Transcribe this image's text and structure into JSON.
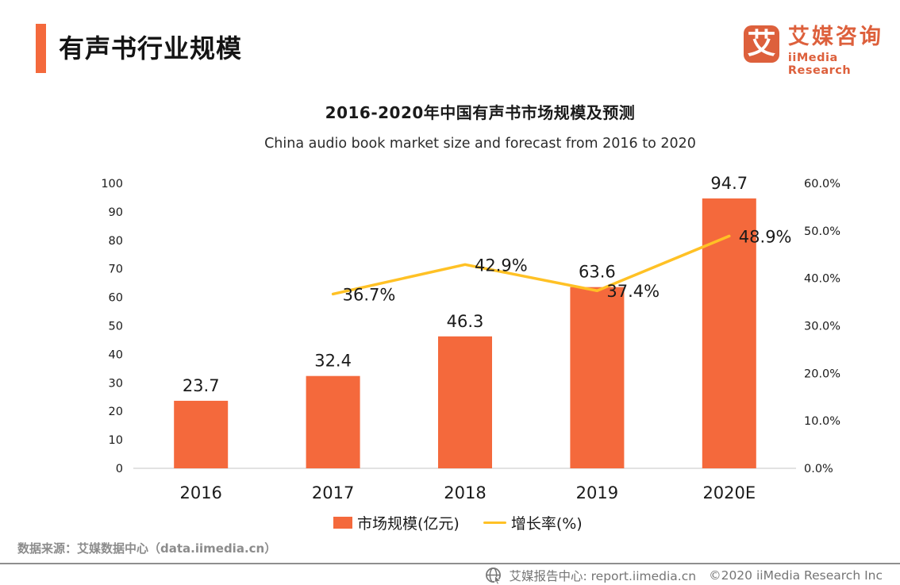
{
  "page": {
    "title": "有声书行业规模"
  },
  "logo": {
    "icon_char": "艾",
    "name_cn": "艾媒咨询",
    "name_en": "iiMedia Research",
    "color": "#DD603C"
  },
  "chart": {
    "title_cn": "2016-2020年中国有声书市场规模及预测",
    "title_en": "China audio book market size and forecast from 2016 to 2020",
    "legend": [
      {
        "label": "市场规模(亿元)",
        "swatch": "bar-square",
        "color": "#F4693C"
      },
      {
        "label": "增长率(%)",
        "swatch": "line",
        "color": "#FFC125"
      }
    ]
  },
  "chart_data": {
    "type": "bar",
    "subtype": "bar+line dual axis",
    "title": "2016-2020年中国有声书市场规模及预测",
    "subtitle": "China audio book market size and forecast from 2016 to 2020",
    "categories": [
      "2016",
      "2017",
      "2018",
      "2019",
      "2020E"
    ],
    "series": [
      {
        "name": "市场规模(亿元)",
        "type": "bar",
        "axis": "left",
        "color": "#F4693C",
        "values": [
          23.7,
          32.4,
          46.3,
          63.6,
          94.7
        ],
        "value_labels": [
          "23.7",
          "32.4",
          "46.3",
          "63.6",
          "94.7"
        ]
      },
      {
        "name": "增长率(%)",
        "type": "line",
        "axis": "right",
        "color": "#FFC125",
        "values": [
          null,
          36.7,
          42.9,
          37.4,
          48.9
        ],
        "value_labels": [
          null,
          "36.7%",
          "42.9%",
          "37.4%",
          "48.9%"
        ]
      }
    ],
    "y_axis_left": {
      "min": 0,
      "max": 100,
      "ticks": [
        "0",
        "10",
        "20",
        "30",
        "40",
        "50",
        "60",
        "70",
        "80",
        "90",
        "100"
      ]
    },
    "y_axis_right": {
      "min": 0,
      "max": 60,
      "ticks": [
        "0.0%",
        "10.0%",
        "20.0%",
        "30.0%",
        "40.0%",
        "50.0%",
        "60.0%"
      ]
    },
    "grid": "off",
    "legend_position": "bottom"
  },
  "source": {
    "text": "数据来源：艾媒数据中心（data.iimedia.cn）"
  },
  "footer": {
    "report_center": "艾媒报告中心:  report.iimedia.cn",
    "copyright": "©2020  iiMedia Research  Inc"
  }
}
